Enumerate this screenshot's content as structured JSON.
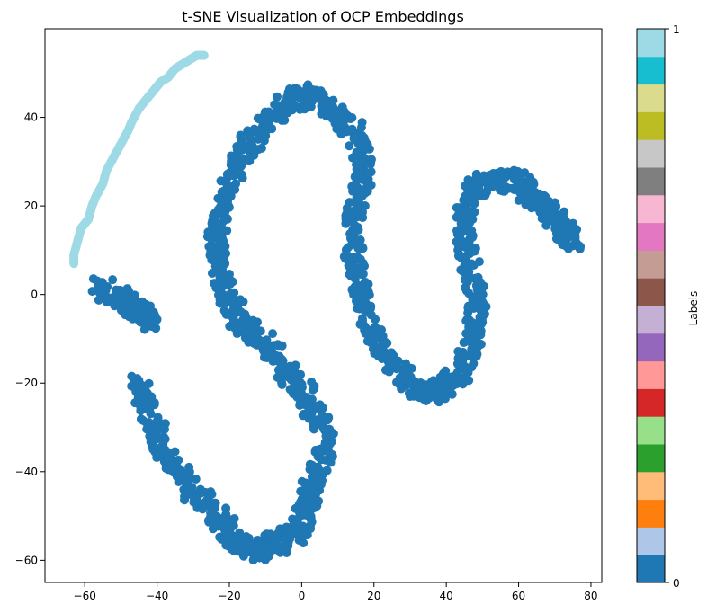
{
  "chart_data": {
    "type": "scatter",
    "title": "t-SNE Visualization of OCP Embeddings",
    "xlabel": "",
    "ylabel": "",
    "xlim": [
      -71,
      83
    ],
    "ylim": [
      -65,
      60
    ],
    "x_ticks": [
      -60,
      -40,
      -20,
      0,
      20,
      40,
      60,
      80
    ],
    "y_ticks": [
      -60,
      -40,
      -20,
      0,
      20,
      40
    ],
    "x_tick_labels": [
      "−60",
      "−40",
      "−20",
      "0",
      "20",
      "40",
      "60",
      "80"
    ],
    "y_tick_labels": [
      "−60",
      "−40",
      "−20",
      "0",
      "20",
      "40"
    ],
    "grid": false,
    "colormap": "tab20",
    "colorbar": {
      "label": "Labels",
      "min_label": "0",
      "max_label": "1",
      "colors": [
        "#1f77b4",
        "#aec7e8",
        "#ff7f0e",
        "#ffbb78",
        "#2ca02c",
        "#98df8a",
        "#d62728",
        "#ff9896",
        "#9467bd",
        "#c5b0d5",
        "#8c564b",
        "#c49c94",
        "#e377c2",
        "#f7b6d2",
        "#7f7f7f",
        "#c7c7c7",
        "#bcbd22",
        "#dbdb8d",
        "#17becf",
        "#9edae5"
      ]
    },
    "series": [
      {
        "label_value": 1,
        "color": "#9edae5",
        "points": [
          [
            -63,
            7
          ],
          [
            -63,
            9
          ],
          [
            -62,
            12
          ],
          [
            -61,
            15
          ],
          [
            -59,
            17
          ],
          [
            -58,
            20
          ],
          [
            -57,
            22
          ],
          [
            -55,
            25
          ],
          [
            -54,
            28
          ],
          [
            -52,
            31
          ],
          [
            -50,
            34
          ],
          [
            -48,
            37
          ],
          [
            -47,
            39
          ],
          [
            -45,
            42
          ],
          [
            -43,
            44
          ],
          [
            -41,
            46
          ],
          [
            -39,
            48
          ],
          [
            -37,
            49
          ],
          [
            -35,
            51
          ],
          [
            -33,
            52
          ],
          [
            -31,
            53
          ],
          [
            -29,
            54
          ],
          [
            -27,
            54
          ]
        ]
      },
      {
        "label_value": 0,
        "color": "#1f77b4",
        "points": [
          [
            -56,
            2
          ],
          [
            -53,
            0
          ],
          [
            -50,
            -1
          ],
          [
            -47,
            -2
          ],
          [
            -45,
            -3
          ],
          [
            -43,
            -5
          ],
          [
            -42,
            -6
          ],
          [
            -45,
            -19
          ],
          [
            -44,
            -23
          ],
          [
            -42,
            -27
          ],
          [
            -40,
            -31
          ],
          [
            -38,
            -35
          ],
          [
            -35,
            -39
          ],
          [
            -32,
            -42
          ],
          [
            -29,
            -45
          ],
          [
            -26,
            -48
          ],
          [
            -23,
            -50
          ],
          [
            -21,
            -53
          ],
          [
            -19,
            -55
          ],
          [
            -16,
            -57
          ],
          [
            -13,
            -58
          ],
          [
            -10,
            -57
          ],
          [
            -7,
            -56
          ],
          [
            -4,
            -55
          ],
          [
            -1,
            -53
          ],
          [
            1,
            -50
          ],
          [
            2,
            -46
          ],
          [
            3,
            -42
          ],
          [
            5,
            -38
          ],
          [
            7,
            -34
          ],
          [
            6,
            -30
          ],
          [
            4,
            -27
          ],
          [
            2,
            -24
          ],
          [
            0,
            -21
          ],
          [
            -3,
            -18
          ],
          [
            -6,
            -15
          ],
          [
            -9,
            -12
          ],
          [
            -12,
            -10
          ],
          [
            -14,
            -8
          ],
          [
            -17,
            -6
          ],
          [
            -19,
            -3
          ],
          [
            -21,
            0
          ],
          [
            -22,
            4
          ],
          [
            -23,
            8
          ],
          [
            -24,
            12
          ],
          [
            -23,
            16
          ],
          [
            -22,
            20
          ],
          [
            -20,
            24
          ],
          [
            -18,
            28
          ],
          [
            -16,
            32
          ],
          [
            -14,
            35
          ],
          [
            -11,
            38
          ],
          [
            -8,
            40
          ],
          [
            -5,
            42
          ],
          [
            -2,
            44
          ],
          [
            1,
            45
          ],
          [
            4,
            44
          ],
          [
            7,
            42
          ],
          [
            10,
            40
          ],
          [
            13,
            38
          ],
          [
            16,
            35
          ],
          [
            17,
            31
          ],
          [
            17,
            27
          ],
          [
            16,
            23
          ],
          [
            15,
            19
          ],
          [
            14,
            15
          ],
          [
            14,
            11
          ],
          [
            15,
            7
          ],
          [
            16,
            3
          ],
          [
            17,
            -1
          ],
          [
            18,
            -5
          ],
          [
            20,
            -9
          ],
          [
            22,
            -13
          ],
          [
            25,
            -16
          ],
          [
            28,
            -19
          ],
          [
            31,
            -21
          ],
          [
            34,
            -22
          ],
          [
            37,
            -22
          ],
          [
            40,
            -21
          ],
          [
            43,
            -19
          ],
          [
            45,
            -15
          ],
          [
            47,
            -11
          ],
          [
            48,
            -7
          ],
          [
            49,
            -3
          ],
          [
            48,
            1
          ],
          [
            47,
            5
          ],
          [
            46,
            9
          ],
          [
            45,
            13
          ],
          [
            45,
            17
          ],
          [
            46,
            21
          ],
          [
            48,
            24
          ],
          [
            51,
            25
          ],
          [
            54,
            26
          ],
          [
            57,
            26
          ],
          [
            60,
            25
          ],
          [
            63,
            23
          ],
          [
            66,
            21
          ],
          [
            68,
            19
          ],
          [
            70,
            17
          ],
          [
            72,
            15
          ],
          [
            74,
            13
          ],
          [
            75,
            12
          ]
        ]
      }
    ]
  }
}
